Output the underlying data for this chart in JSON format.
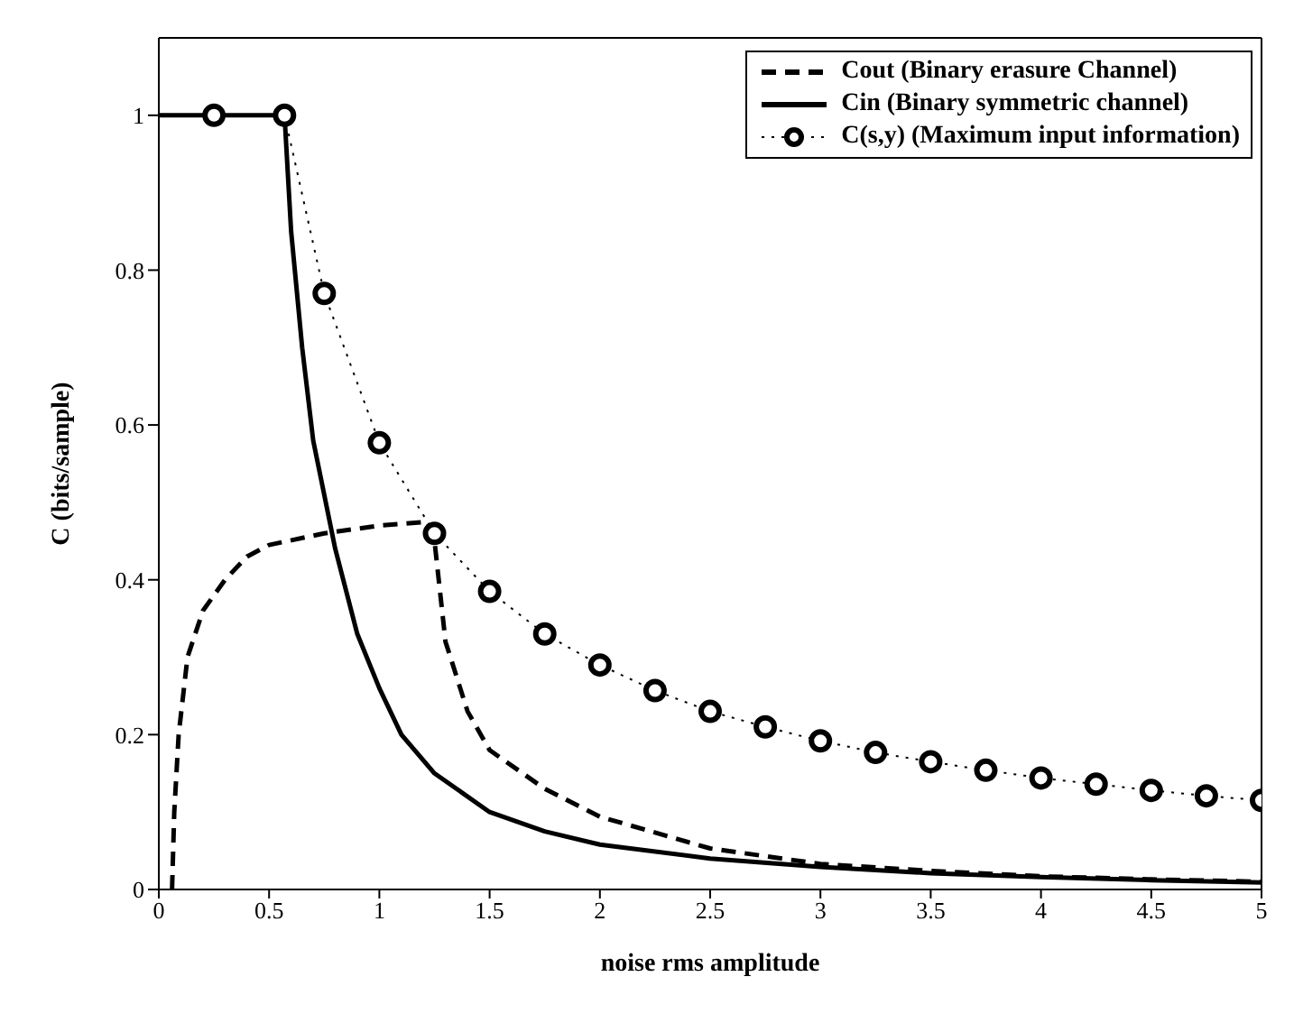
{
  "chart_data": {
    "type": "line",
    "xlabel": "noise rms amplitude",
    "ylabel": "C (bits/sample)",
    "xlim": [
      0,
      5
    ],
    "xticks": [
      0,
      0.5,
      1,
      1.5,
      2,
      2.5,
      3,
      3.5,
      4,
      4.5,
      5
    ],
    "ylim": [
      0,
      1.1
    ],
    "yticks": [
      0,
      0.2,
      0.4,
      0.6,
      0.8,
      1
    ],
    "grid": false,
    "legend": "top right",
    "series": [
      {
        "name": "Cout (Binary erasure Channel)",
        "color": "#000000",
        "line_style": "dashed",
        "marker": "none",
        "x": [
          0.06,
          0.07,
          0.09,
          0.13,
          0.2,
          0.3,
          0.4,
          0.5,
          0.75,
          1,
          1.22,
          1.25,
          1.3,
          1.4,
          1.5,
          1.75,
          2,
          2.5,
          3,
          3.5,
          4,
          4.5,
          5
        ],
        "values": [
          0,
          0.1,
          0.2,
          0.3,
          0.36,
          0.4,
          0.43,
          0.445,
          0.46,
          0.47,
          0.475,
          0.45,
          0.32,
          0.23,
          0.18,
          0.13,
          0.094,
          0.053,
          0.033,
          0.024,
          0.017,
          0.013,
          0.01
        ]
      },
      {
        "name": "Cin (Binary symmetric channel)",
        "color": "#000000",
        "line_style": "solid",
        "marker": "none",
        "x": [
          0,
          0.57,
          0.6,
          0.65,
          0.7,
          0.8,
          0.9,
          1,
          1.1,
          1.25,
          1.5,
          1.75,
          2,
          2.5,
          3,
          3.5,
          4,
          4.5,
          5
        ],
        "values": [
          1,
          1,
          0.85,
          0.7,
          0.58,
          0.44,
          0.33,
          0.26,
          0.2,
          0.15,
          0.1,
          0.075,
          0.058,
          0.04,
          0.029,
          0.021,
          0.016,
          0.012,
          0.009
        ]
      },
      {
        "name": "C(s,y) (Maximum input information)",
        "color": "#000000",
        "line_style": "dotted",
        "marker": "circle",
        "x": [
          0.25,
          0.57,
          0.75,
          1,
          1.25,
          1.5,
          1.75,
          2,
          2.25,
          2.5,
          2.75,
          3,
          3.25,
          3.5,
          3.75,
          4,
          4.25,
          4.5,
          4.75,
          5
        ],
        "values": [
          1,
          1,
          0.77,
          0.577,
          0.46,
          0.385,
          0.33,
          0.29,
          0.257,
          0.23,
          0.21,
          0.192,
          0.177,
          0.165,
          0.154,
          0.144,
          0.136,
          0.128,
          0.121,
          0.115
        ]
      }
    ]
  }
}
